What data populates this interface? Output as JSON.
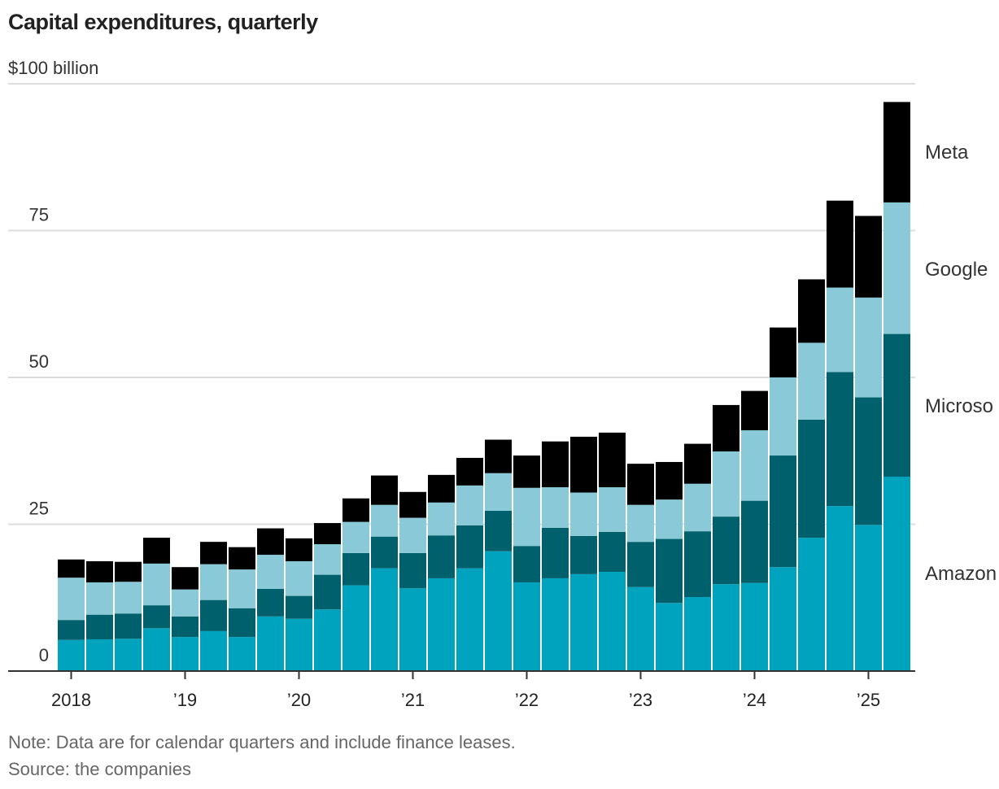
{
  "chart_data": {
    "type": "bar",
    "stacked": true,
    "title": "Capital expenditures, quarterly",
    "ylabel": "$100 billion",
    "ylim": [
      0,
      100
    ],
    "yticks": [
      0,
      25,
      50,
      75,
      100
    ],
    "ytick_labels": [
      "0",
      "25",
      "50",
      "75",
      "$100 billion"
    ],
    "xtick_labels": [
      "2018",
      "’19",
      "’20",
      "’21",
      "’22",
      "’23",
      "’24",
      "’25"
    ],
    "categories": [
      "2018 Q1",
      "2018 Q2",
      "2018 Q3",
      "2018 Q4",
      "2019 Q1",
      "2019 Q2",
      "2019 Q3",
      "2019 Q4",
      "2020 Q1",
      "2020 Q2",
      "2020 Q3",
      "2020 Q4",
      "2021 Q1",
      "2021 Q2",
      "2021 Q3",
      "2021 Q4",
      "2022 Q1",
      "2022 Q2",
      "2022 Q3",
      "2022 Q4",
      "2023 Q1",
      "2023 Q2",
      "2023 Q3",
      "2023 Q4",
      "2024 Q1",
      "2024 Q2",
      "2024 Q3",
      "2024 Q4",
      "2025 Q1",
      "2025 Q2"
    ],
    "legend_placement": "right, inline labels",
    "grid": true,
    "series": [
      {
        "name": "Amazon",
        "color": "#00a3bd",
        "values": [
          5.3,
          5.4,
          5.5,
          7.3,
          5.8,
          6.8,
          5.8,
          9.3,
          8.9,
          10.5,
          14.6,
          17.5,
          14.1,
          15.8,
          17.5,
          20.4,
          15.1,
          15.8,
          16.5,
          16.9,
          14.3,
          11.6,
          12.6,
          14.8,
          15.0,
          17.7,
          22.7,
          28.1,
          24.9,
          33.1
        ]
      },
      {
        "name": "Microsoft",
        "color": "#00606b",
        "values": [
          3.4,
          4.2,
          4.3,
          3.9,
          3.5,
          5.3,
          4.9,
          4.7,
          3.9,
          5.9,
          5.5,
          5.4,
          6.0,
          7.3,
          7.3,
          6.9,
          6.2,
          8.6,
          6.5,
          6.8,
          7.7,
          10.9,
          11.2,
          11.5,
          14.0,
          19.0,
          20.1,
          22.8,
          21.7,
          24.3
        ]
      },
      {
        "name": "Google",
        "color": "#8ac9d8",
        "values": [
          7.2,
          5.5,
          5.4,
          7.1,
          4.6,
          6.1,
          6.6,
          5.8,
          5.9,
          5.2,
          5.3,
          5.4,
          6.0,
          5.6,
          6.8,
          6.4,
          9.9,
          6.9,
          7.4,
          7.6,
          6.3,
          6.7,
          8.1,
          11.1,
          12.0,
          13.3,
          13.1,
          14.4,
          17.0,
          22.4
        ]
      },
      {
        "name": "Meta",
        "color": "#000000",
        "values": [
          3.1,
          3.6,
          3.4,
          4.4,
          3.8,
          3.8,
          3.8,
          4.5,
          3.9,
          3.6,
          4.0,
          5.0,
          4.4,
          4.7,
          4.7,
          5.7,
          5.5,
          7.8,
          9.5,
          9.3,
          7.0,
          6.4,
          6.8,
          7.9,
          6.7,
          8.5,
          10.8,
          14.8,
          13.9,
          17.1
        ]
      }
    ],
    "series_labels": [
      "Meta",
      "Google",
      "Microso",
      "Amazon"
    ]
  },
  "notes": {
    "note": "Note: Data are for calendar quarters and include finance leases.",
    "source": "Source: the companies"
  }
}
